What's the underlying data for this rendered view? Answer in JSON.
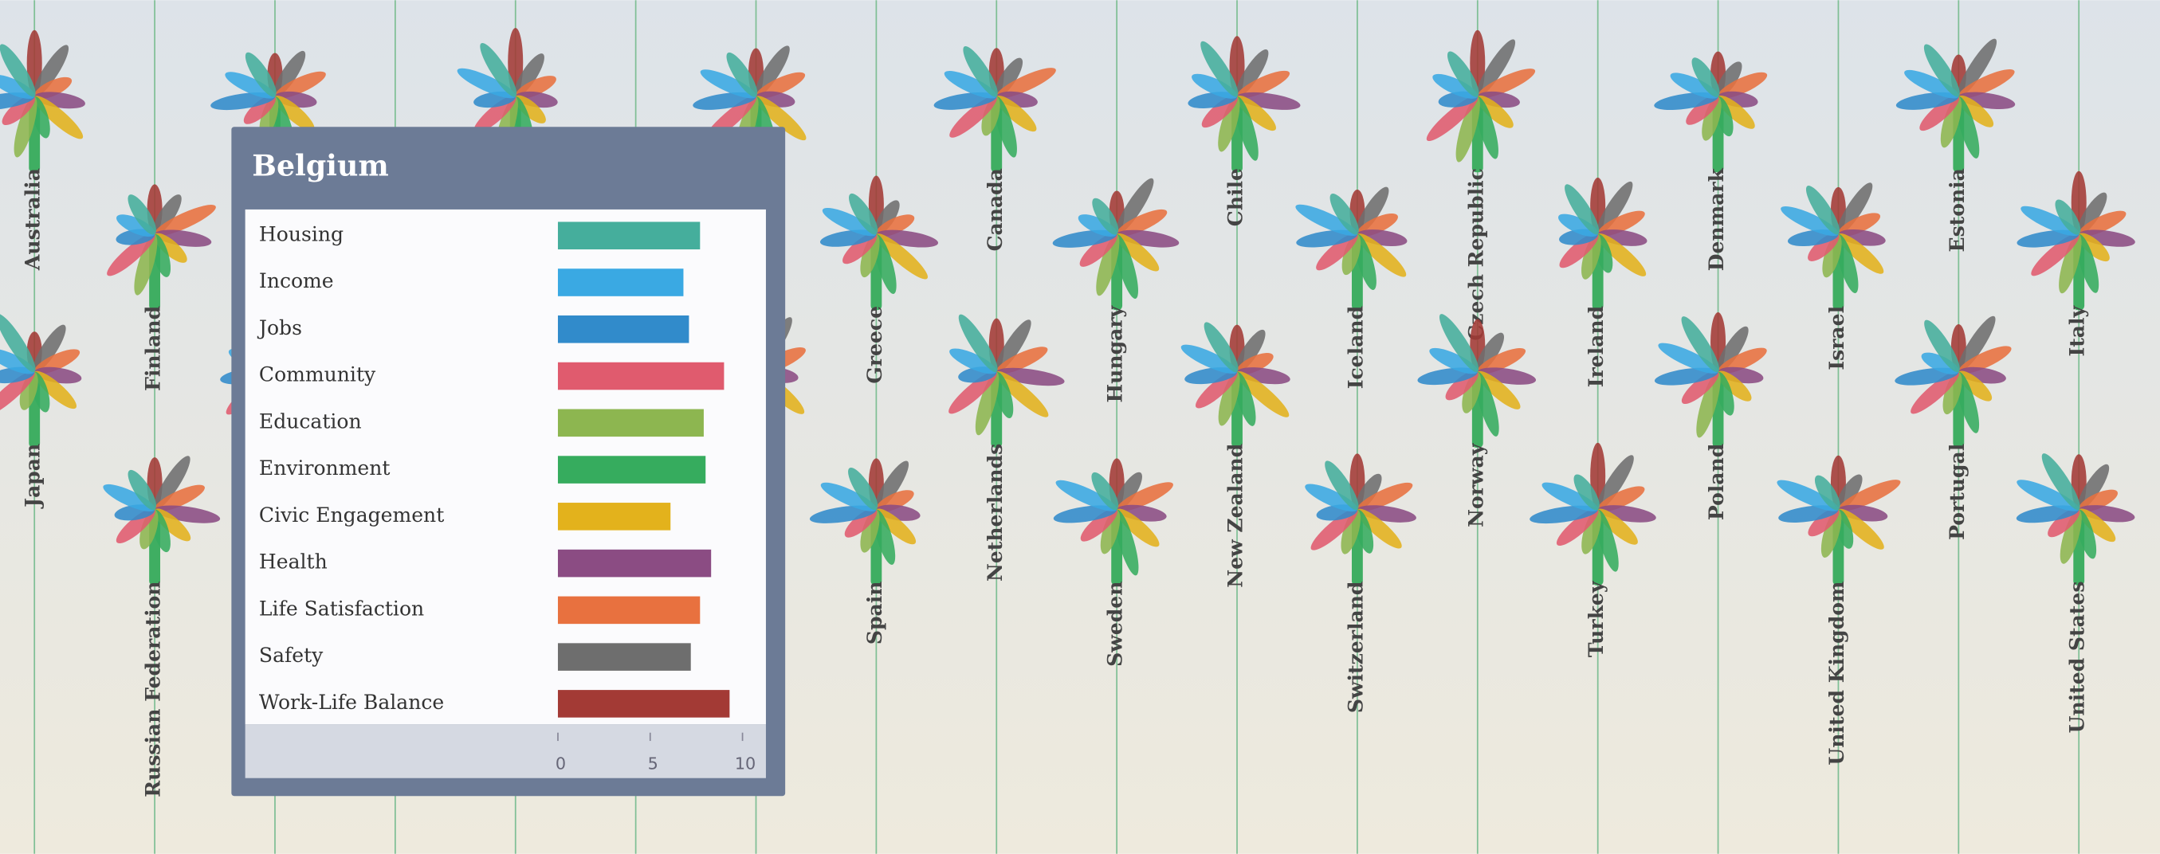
{
  "countries": [
    "Australia",
    "Japan",
    "Finland",
    "Russian Federation",
    "Greece",
    "Spain",
    "Canada",
    "Netherlands",
    "Hungary",
    "Sweden",
    "Chile",
    "New Zealand",
    "Iceland",
    "Switzerland",
    "Czech Republic",
    "Norway",
    "Ireland",
    "Turkey",
    "Denmark",
    "Poland",
    "Israel",
    "United Kingdom",
    "Estonia",
    "Portugal",
    "Italy",
    "United States"
  ],
  "tooltip": {
    "title": "Belgium",
    "categories": [
      "Housing",
      "Income",
      "Jobs",
      "Community",
      "Education",
      "Environment",
      "Civic Engagement",
      "Health",
      "Life Satisfaction",
      "Safety",
      "Work-Life Balance"
    ],
    "values": [
      7.7,
      6.8,
      7.1,
      9.0,
      7.9,
      8.0,
      6.1,
      8.3,
      7.7,
      7.2,
      9.3
    ],
    "colors": [
      "#45ae9c",
      "#3aa9e3",
      "#318bcb",
      "#e05b6e",
      "#8db650",
      "#36ac5e",
      "#e3b21c",
      "#8b4c83",
      "#e8713f",
      "#6e6e6e",
      "#a33a35"
    ],
    "xlim": [
      0,
      10
    ],
    "xticks": [
      0,
      5,
      10
    ]
  }
}
